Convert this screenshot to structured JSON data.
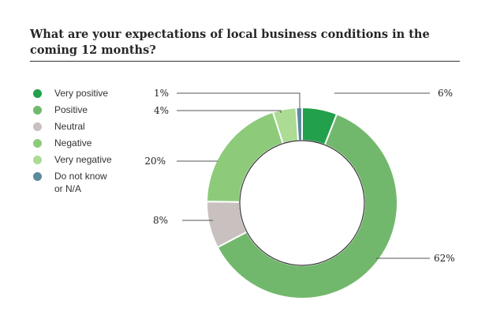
{
  "title": "What are your expectations of local business conditions in the coming 12 months?",
  "chart_data": {
    "type": "pie",
    "variant": "donut",
    "categories": [
      "Very positive",
      "Positive",
      "Neutral",
      "Negative",
      "Very negative",
      "Do not know or N/A"
    ],
    "values": [
      6,
      62,
      8,
      20,
      4,
      1
    ],
    "labels": [
      "6%",
      "62%",
      "8%",
      "20%",
      "4%",
      "1%"
    ],
    "colors": [
      "#22a04b",
      "#72b86c",
      "#c9c1c0",
      "#8dcb7b",
      "#acdb94",
      "#5b8a9c"
    ],
    "legend_labels": [
      "Very positive",
      "Positive",
      "Neutral",
      "Negative",
      "Very negative",
      "Do not know\nor N/A"
    ],
    "legend_position": "left",
    "start_angle": 0,
    "direction": "clockwise"
  }
}
